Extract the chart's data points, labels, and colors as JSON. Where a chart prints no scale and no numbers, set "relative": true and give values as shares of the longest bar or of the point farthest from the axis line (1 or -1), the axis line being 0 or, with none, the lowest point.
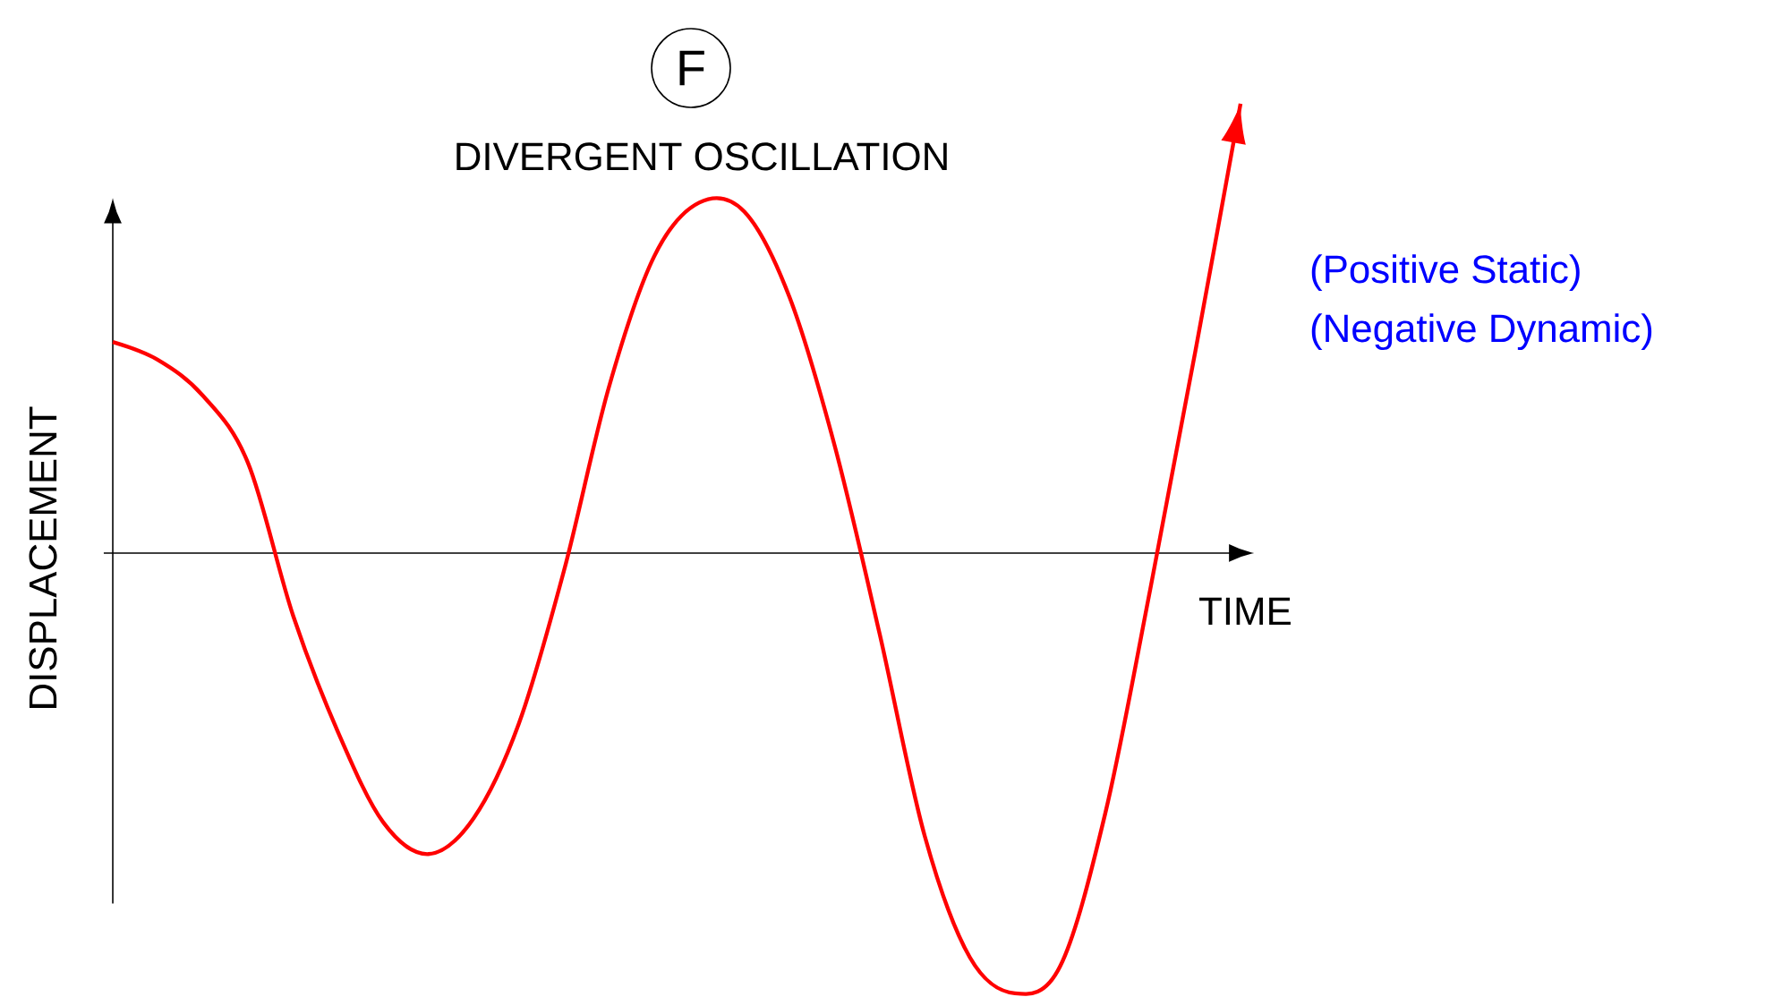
{
  "chart_data": {
    "type": "line",
    "relative": true,
    "title": "DIVERGENT OSCILLATION",
    "xlabel": "TIME",
    "ylabel": "DISPLACEMENT",
    "annotations": [
      "F",
      "(Positive Static)",
      "(Negative Dynamic)"
    ],
    "categories": [
      null,
      null,
      null,
      null,
      null,
      null,
      null,
      null,
      null,
      null,
      null,
      null,
      null,
      null,
      null,
      null,
      null,
      null,
      null,
      null,
      null,
      null,
      null,
      null,
      null,
      null
    ],
    "series": [
      {
        "color": "#ff0000",
        "values": [
          0.47,
          0.43,
          0.35,
          0.2,
          -0.14,
          -0.4,
          -0.6,
          -0.67,
          -0.59,
          -0.38,
          -0.04,
          0.37,
          0.66,
          0.78,
          0.76,
          0.57,
          0.24,
          -0.18,
          -0.63,
          -0.9,
          -0.98,
          -0.92,
          -0.58,
          -0.08,
          0.45,
          1
        ]
      }
    ]
  }
}
